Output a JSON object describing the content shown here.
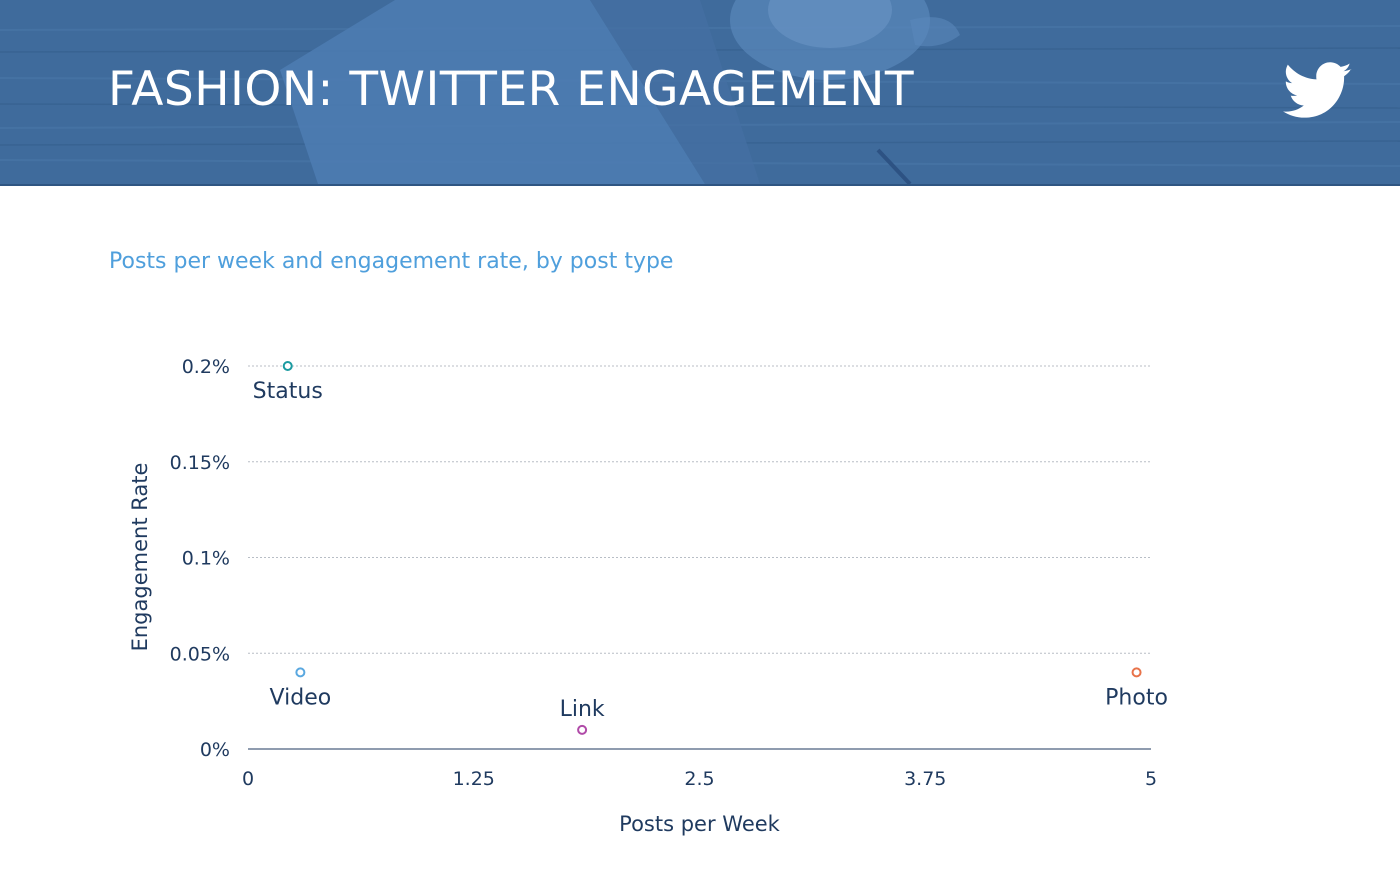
{
  "header": {
    "title": "FASHION: TWITTER ENGAGEMENT",
    "background_color": "#3f6b9c",
    "icon": "twitter-bird-icon"
  },
  "subtitle": "Posts per week and engagement rate, by post type",
  "chart_data": {
    "type": "scatter",
    "xlabel": "Posts per Week",
    "ylabel": "Engagement Rate",
    "xlim": [
      0,
      5
    ],
    "ylim": [
      0,
      0.2
    ],
    "xticks": [
      0,
      1.25,
      2.5,
      3.75,
      5
    ],
    "xtick_labels": [
      "0",
      "1.25",
      "2.5",
      "3.75",
      "5"
    ],
    "yticks": [
      0,
      0.05,
      0.1,
      0.15,
      0.2
    ],
    "ytick_labels": [
      "0%",
      "0.05%",
      "0.1%",
      "0.15%",
      "0.2%"
    ],
    "grid": true,
    "points": [
      {
        "label": "Status",
        "x": 0.22,
        "y": 0.2,
        "color": "#1a9aa0",
        "label_position": "below"
      },
      {
        "label": "Video",
        "x": 0.29,
        "y": 0.04,
        "color": "#5aa8e0",
        "label_position": "below"
      },
      {
        "label": "Link",
        "x": 1.85,
        "y": 0.01,
        "color": "#b04aa8",
        "label_position": "above"
      },
      {
        "label": "Photo",
        "x": 4.92,
        "y": 0.04,
        "color": "#e8734a",
        "label_position": "below"
      }
    ],
    "text_color": "#1f3a5f",
    "grid_color": "#b8bec6",
    "axis_color": "#1f3a5f"
  }
}
